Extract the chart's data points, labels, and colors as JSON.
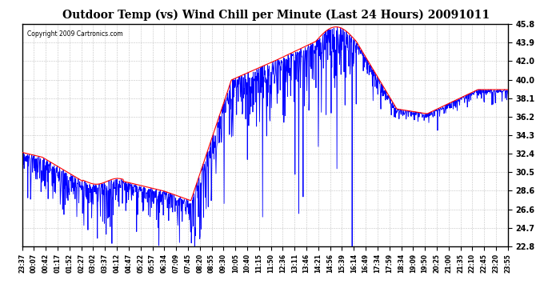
{
  "title": "Outdoor Temp (vs) Wind Chill per Minute (Last 24 Hours) 20091011",
  "copyright": "Copyright 2009 Cartronics.com",
  "yticks": [
    22.8,
    24.7,
    26.6,
    28.6,
    30.5,
    32.4,
    34.3,
    36.2,
    38.1,
    40.0,
    42.0,
    43.9,
    45.8
  ],
  "ylim": [
    22.8,
    45.8
  ],
  "bg_color": "#ffffff",
  "plot_bg": "#ffffff",
  "grid_color": "#aaaaaa",
  "red_color": "#ff0000",
  "blue_color": "#0000ff",
  "xtick_labels": [
    "23:37",
    "00:07",
    "00:42",
    "01:17",
    "01:52",
    "02:27",
    "03:02",
    "03:37",
    "04:12",
    "04:47",
    "05:22",
    "05:57",
    "06:34",
    "07:09",
    "07:45",
    "08:20",
    "08:55",
    "09:30",
    "10:05",
    "10:40",
    "11:15",
    "11:50",
    "12:36",
    "13:11",
    "13:46",
    "14:21",
    "14:56",
    "15:39",
    "16:14",
    "16:49",
    "17:34",
    "17:59",
    "18:34",
    "19:09",
    "19:50",
    "20:25",
    "21:00",
    "21:35",
    "22:10",
    "22:45",
    "23:20",
    "23:55"
  ]
}
